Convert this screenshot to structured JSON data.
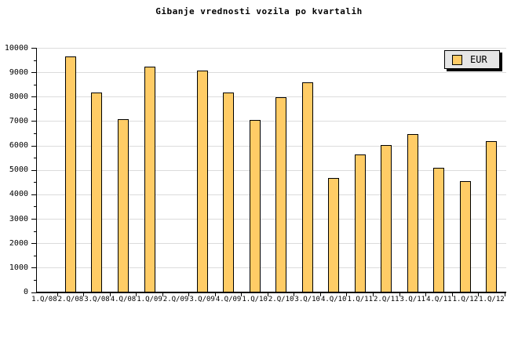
{
  "window": {
    "background": "#FFFFFF"
  },
  "header": {
    "title": "Gibanje vrednosti vozila po kvartalih"
  },
  "legend": {
    "position": "top-right",
    "background": "#E6E6E6",
    "items": [
      {
        "label": "EUR",
        "swatch_color": "#FFCC66"
      }
    ]
  },
  "chart_data": {
    "type": "bar",
    "title": "Gibanje vrednosti vozila po kvartalih",
    "categories": [
      "1.Q/08",
      "2.Q/08",
      "3.Q/08",
      "4.Q/08",
      "1.Q/09",
      "2.Q/09",
      "3.Q/09",
      "4.Q/09",
      "1.Q/10",
      "2.Q/10",
      "3.Q/10",
      "4.Q/10",
      "1.Q/11",
      "2.Q/11",
      "3.Q/11",
      "4.Q/11",
      "1.Q/12",
      "1.Q/12"
    ],
    "series": [
      {
        "name": "EUR",
        "color": "#FFCC66",
        "values": [
          null,
          9650,
          8200,
          7100,
          9250,
          null,
          9100,
          8200,
          7050,
          8000,
          8600,
          4700,
          5650,
          6050,
          6500,
          5100,
          4550,
          6200
        ]
      }
    ],
    "ylim": [
      0,
      10000
    ],
    "ytick_labels": [
      "0",
      "1000",
      "2000",
      "3000",
      "4000",
      "5000",
      "6000",
      "7000",
      "8000",
      "9000",
      "10000"
    ],
    "ytick_major_step": 1000,
    "ytick_minor_step": 500,
    "grid": "horizontal-major",
    "grid_color": "#DCDCDC",
    "axis_color": "#000000",
    "bar_border_color": "#000000",
    "legend_position": "top-right",
    "legend_bg": "#E6E6E6"
  }
}
